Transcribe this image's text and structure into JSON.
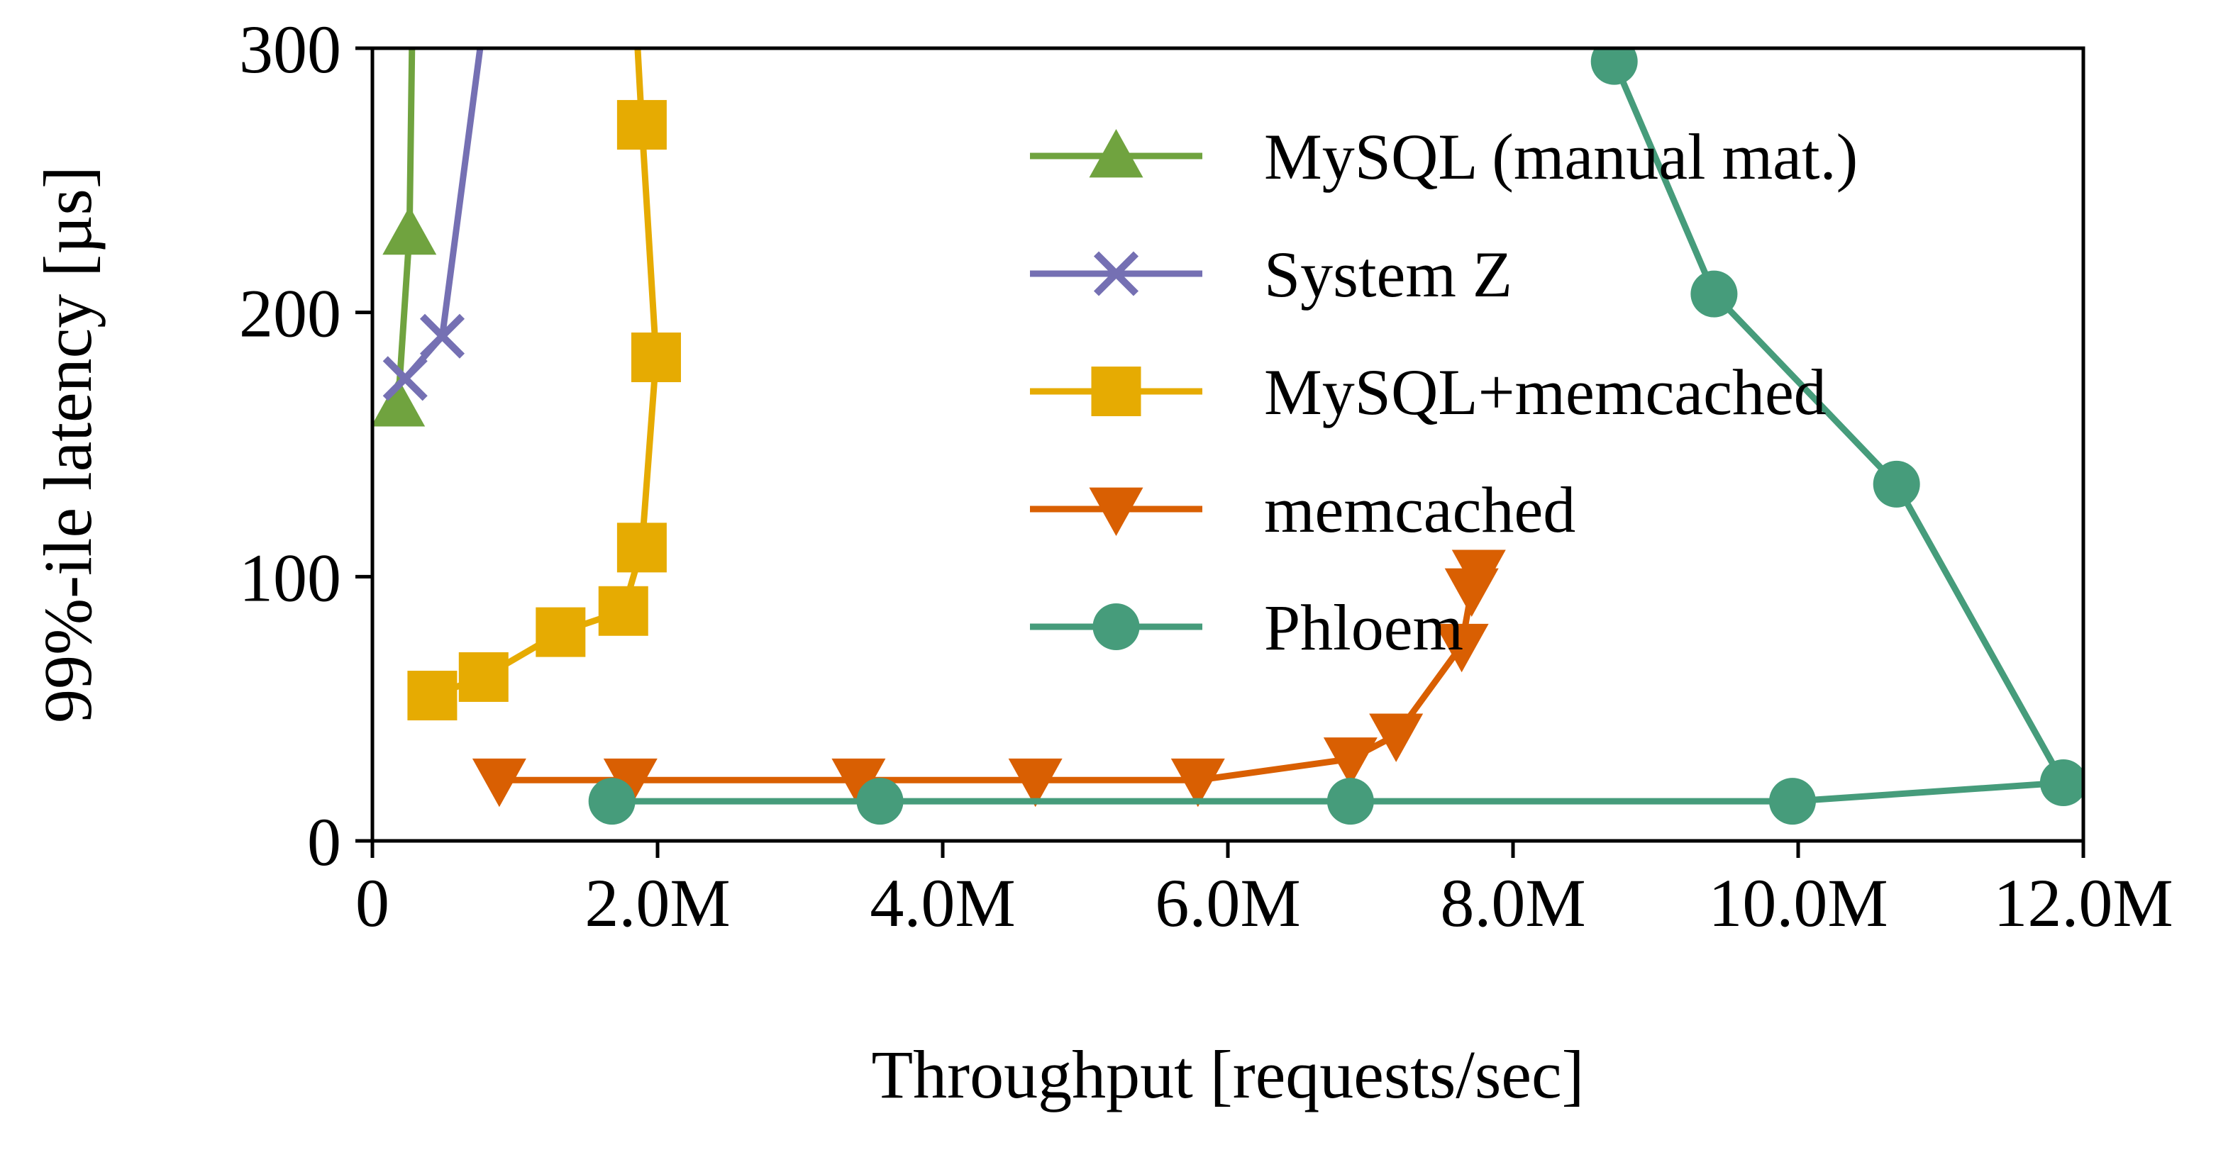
{
  "chart_data": {
    "type": "line",
    "xlabel": "Throughput [requests/sec]",
    "ylabel": "99%-ile latency [µs]",
    "xlim": [
      0,
      12000000
    ],
    "ylim": [
      0,
      300
    ],
    "x_ticks": [
      {
        "value": 0,
        "label": "0"
      },
      {
        "value": 2000000,
        "label": "2.0M"
      },
      {
        "value": 4000000,
        "label": "4.0M"
      },
      {
        "value": 6000000,
        "label": "6.0M"
      },
      {
        "value": 8000000,
        "label": "8.0M"
      },
      {
        "value": 10000000,
        "label": "10.0M"
      },
      {
        "value": 12000000,
        "label": "12.0M"
      }
    ],
    "y_ticks": [
      {
        "value": 0,
        "label": "0"
      },
      {
        "value": 100,
        "label": "100"
      },
      {
        "value": 200,
        "label": "200"
      },
      {
        "value": 300,
        "label": "300"
      }
    ],
    "grid": false,
    "legend_position": "top-right",
    "series": [
      {
        "name": "MySQL (manual mat.)",
        "color": "#70a33f",
        "marker": "triangle-up",
        "points": [
          [
            180000,
            165
          ],
          [
            260000,
            230
          ],
          [
            280000,
            310
          ]
        ]
      },
      {
        "name": "System Z",
        "color": "#7570b3",
        "marker": "x",
        "points": [
          [
            230000,
            175
          ],
          [
            490000,
            191
          ],
          [
            780000,
            310
          ]
        ]
      },
      {
        "name": "MySQL+memcached",
        "color": "#e6ab02",
        "marker": "square",
        "points": [
          [
            420000,
            55
          ],
          [
            780000,
            62
          ],
          [
            1320000,
            79
          ],
          [
            1760000,
            87
          ],
          [
            1890000,
            111
          ],
          [
            1990000,
            183
          ],
          [
            1890000,
            271
          ],
          [
            1850000,
            310
          ]
        ]
      },
      {
        "name": "memcached",
        "color": "#d95f02",
        "marker": "triangle-down",
        "points": [
          [
            890000,
            23
          ],
          [
            1810000,
            23
          ],
          [
            3410000,
            23
          ],
          [
            4650000,
            23
          ],
          [
            5790000,
            23
          ],
          [
            6860000,
            31
          ],
          [
            7180000,
            40
          ],
          [
            7640000,
            74
          ],
          [
            7710000,
            95
          ],
          [
            7760000,
            102
          ]
        ]
      },
      {
        "name": "Phloem",
        "color": "#469c7b",
        "marker": "circle",
        "points": [
          [
            1680000,
            15
          ],
          [
            3560000,
            15
          ],
          [
            6860000,
            15
          ],
          [
            9960000,
            15
          ],
          [
            11860000,
            22
          ],
          [
            10690000,
            135
          ],
          [
            9410000,
            207
          ],
          [
            8710000,
            295
          ]
        ]
      }
    ]
  }
}
